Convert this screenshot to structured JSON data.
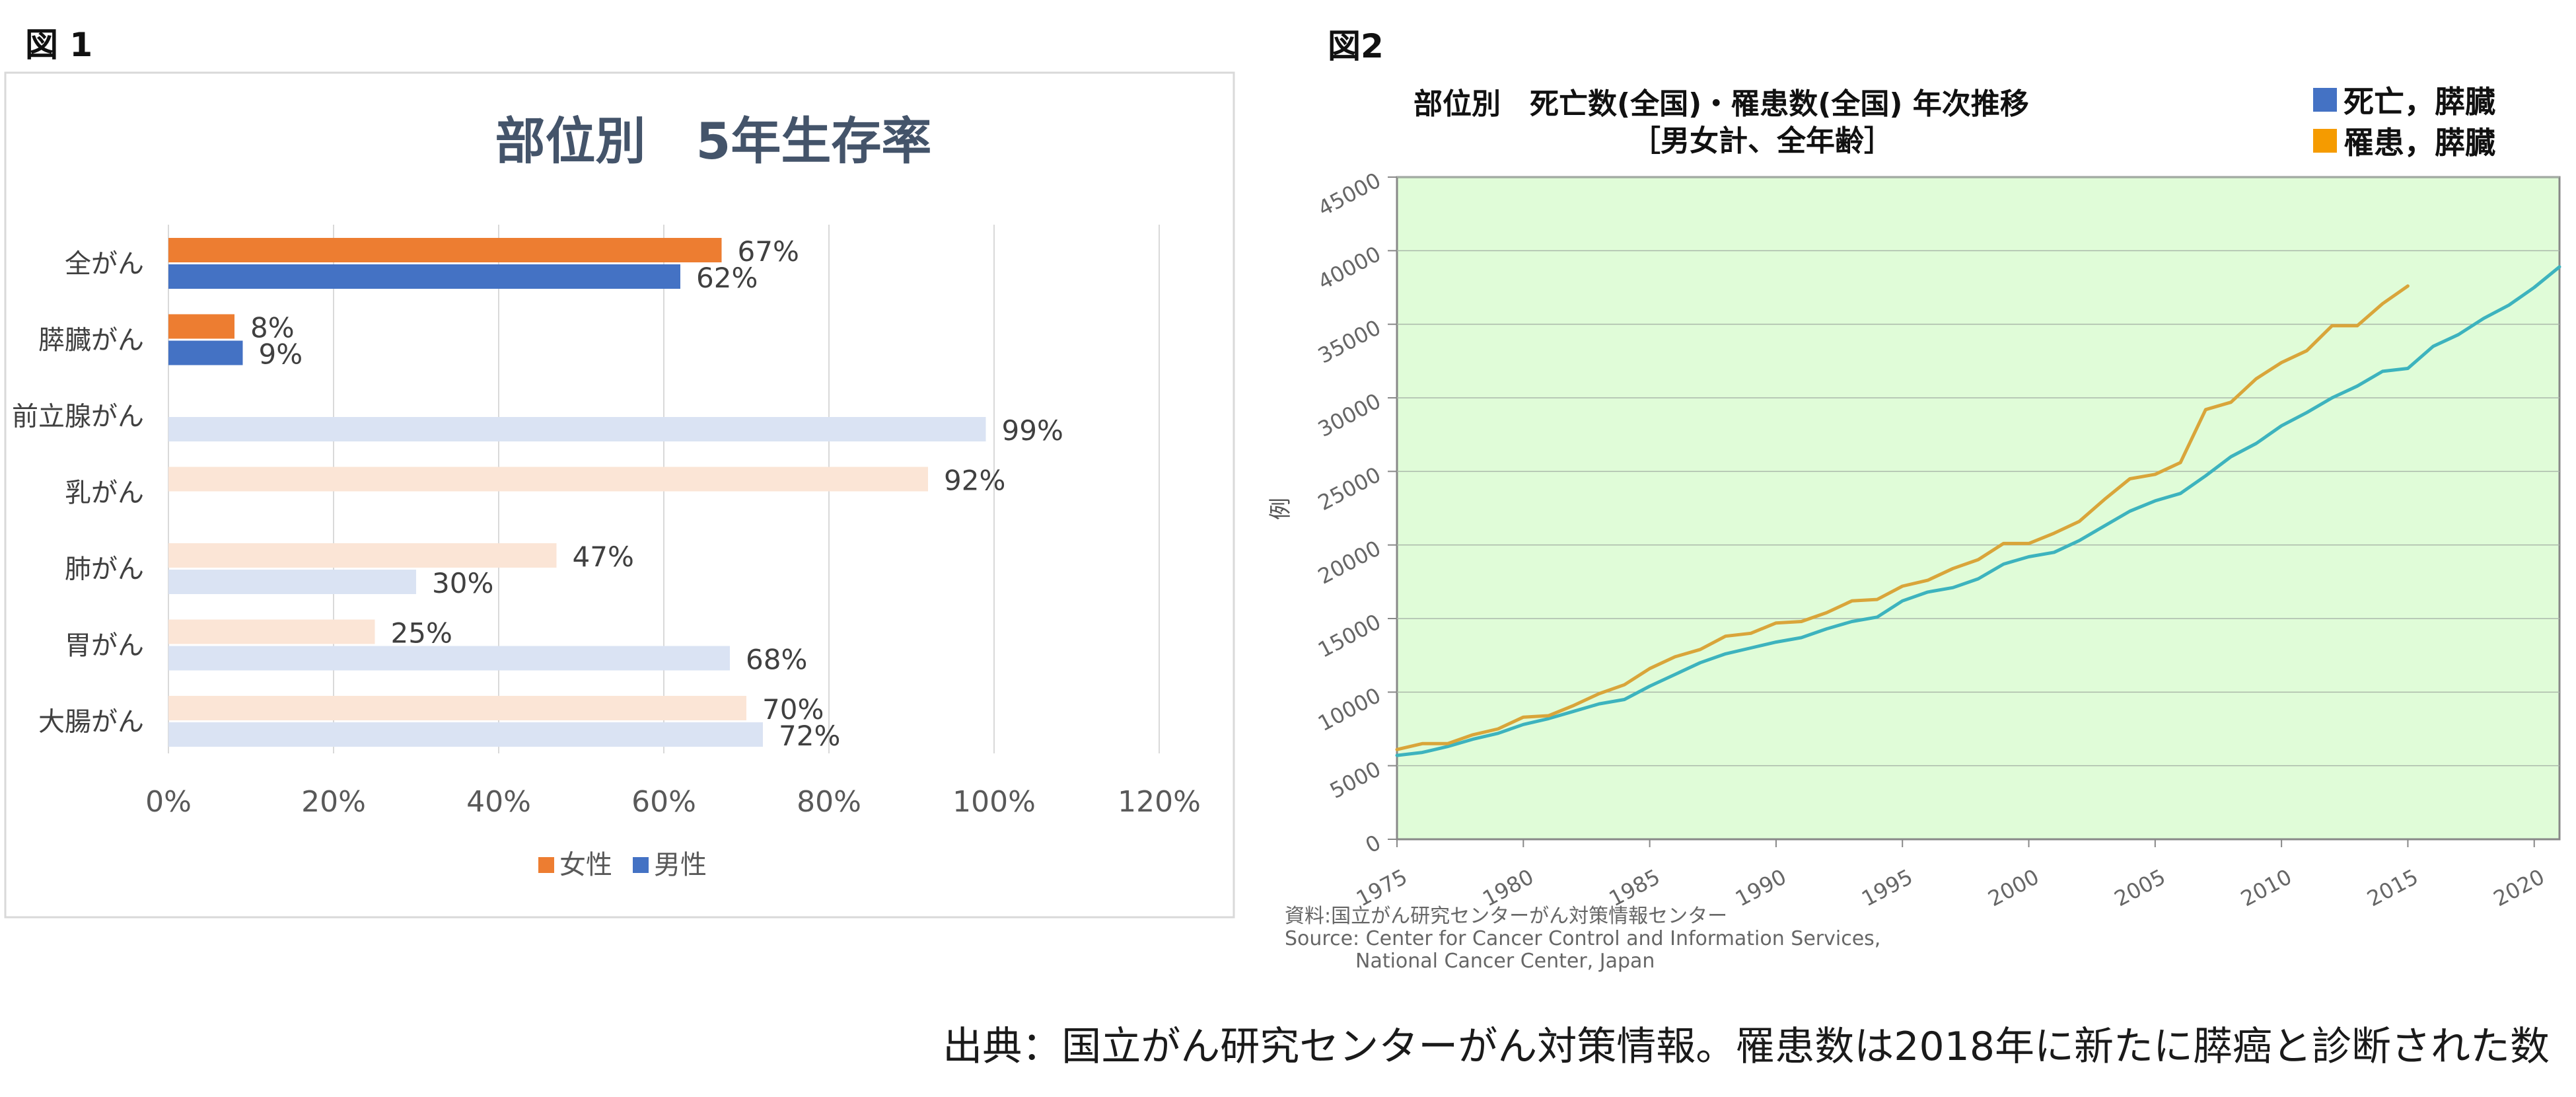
{
  "figure1_label": "図 1",
  "figure2_label": "図2",
  "footer_note": "出典：国立がん研究センターがん対策情報。罹患数は2018年に新たに膵癌と診断された数",
  "colors": {
    "female": "#ED7D31",
    "male": "#4472C4",
    "female_light": "#FBE5D6",
    "male_light": "#DAE3F3",
    "death_line": "#3DB3BE",
    "incidence_line": "#D9A53A",
    "plot_bg": "#E0FCD8",
    "legend_death": "#4472C4",
    "legend_incidence": "#F59B00"
  },
  "chart_data": [
    {
      "type": "bar",
      "orientation": "horizontal",
      "title": "部位別　5年生存率",
      "categories": [
        "全がん",
        "膵臓がん",
        "前立腺がん",
        "乳がん",
        "肺がん",
        "胃がん",
        "大腸がん"
      ],
      "series": [
        {
          "name": "女性",
          "values": [
            67,
            8,
            null,
            92,
            47,
            25,
            70
          ],
          "labels": [
            "67%",
            "8%",
            "",
            "92%",
            "47%",
            "25%",
            "70%"
          ]
        },
        {
          "name": "男性",
          "values": [
            62,
            9,
            99,
            null,
            30,
            68,
            72
          ],
          "labels": [
            "62%",
            "9%",
            "99%",
            "",
            "30%",
            "68%",
            "72%"
          ]
        }
      ],
      "highlight_categories": [
        "全がん",
        "膵臓がん"
      ],
      "xlim": [
        0,
        120
      ],
      "xticks": [
        "0%",
        "20%",
        "40%",
        "60%",
        "80%",
        "100%",
        "120%"
      ],
      "legend": [
        "女性",
        "男性"
      ],
      "legend_position": "bottom",
      "grid": true
    },
    {
      "type": "line",
      "title_line1": "部位別　死亡数(全国)・罹患数(全国)  年次推移",
      "title_line2": "［男女計、全年齢］",
      "ylabel": "例",
      "ylim": [
        0,
        45000
      ],
      "yticks": [
        "0",
        "5000",
        "10000",
        "15000",
        "20000",
        "25000",
        "30000",
        "35000",
        "40000",
        "45000"
      ],
      "xlim": [
        1975,
        2021
      ],
      "xticks": [
        "1975",
        "1980",
        "1985",
        "1990",
        "1995",
        "2000",
        "2005",
        "2010",
        "2015",
        "2020"
      ],
      "legend": [
        "死亡，膵臓",
        "罹患，膵臓"
      ],
      "legend_position": "top-right",
      "series": [
        {
          "name": "死亡，膵臓",
          "x": [
            1975,
            1976,
            1977,
            1978,
            1979,
            1980,
            1981,
            1982,
            1983,
            1984,
            1985,
            1986,
            1987,
            1988,
            1989,
            1990,
            1991,
            1992,
            1993,
            1994,
            1995,
            1996,
            1997,
            1998,
            1999,
            2000,
            2001,
            2002,
            2003,
            2004,
            2005,
            2006,
            2007,
            2008,
            2009,
            2010,
            2011,
            2012,
            2013,
            2014,
            2015,
            2016,
            2017,
            2018,
            2019,
            2020,
            2021
          ],
          "values": [
            5700,
            5900,
            6300,
            6800,
            7200,
            7800,
            8200,
            8700,
            9200,
            9500,
            10400,
            11200,
            12000,
            12600,
            13000,
            13400,
            13700,
            14300,
            14800,
            15100,
            16200,
            16800,
            17100,
            17700,
            18700,
            19200,
            19500,
            20300,
            21300,
            22300,
            23000,
            23500,
            24700,
            26000,
            26900,
            28100,
            29000,
            30000,
            30800,
            31800,
            32000,
            33500,
            34300,
            35400,
            36300,
            37500,
            38900
          ]
        },
        {
          "name": "罹患，膵臓",
          "x": [
            1975,
            1976,
            1977,
            1978,
            1979,
            1980,
            1981,
            1982,
            1983,
            1984,
            1985,
            1986,
            1987,
            1988,
            1989,
            1990,
            1991,
            1992,
            1993,
            1994,
            1995,
            1996,
            1997,
            1998,
            1999,
            2000,
            2001,
            2002,
            2003,
            2004,
            2005,
            2006,
            2007,
            2008,
            2009,
            2010,
            2011,
            2012,
            2013,
            2014,
            2015
          ],
          "values": [
            6100,
            6500,
            6500,
            7100,
            7500,
            8300,
            8400,
            9100,
            9900,
            10500,
            11600,
            12400,
            12900,
            13800,
            14000,
            14700,
            14800,
            15400,
            16200,
            16300,
            17200,
            17600,
            18400,
            19000,
            20100,
            20100,
            20800,
            21600,
            23100,
            24500,
            24800,
            25600,
            29200,
            29700,
            31300,
            32400,
            33200,
            34900,
            34900,
            36400,
            37600
          ]
        }
      ],
      "source_line1": "資料:国立がん研究センターがん対策情報センター",
      "source_line2": "Source: Center for Cancer Control and Information Services,",
      "source_line3": "National Cancer Center, Japan"
    }
  ]
}
